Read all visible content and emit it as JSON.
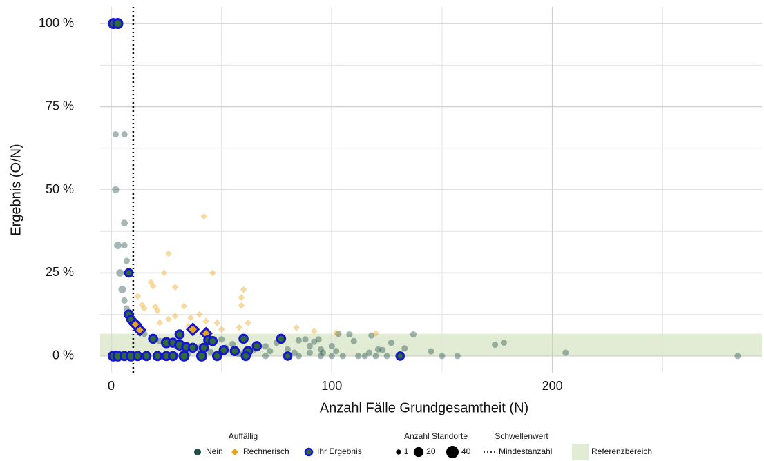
{
  "chart_data": {
    "type": "scatter",
    "xlabel": "Anzahl Fälle Grundgesamtheit (N)",
    "ylabel": "Ergebnis (O/N)",
    "xlim": [
      -5,
      295
    ],
    "ylim": [
      -5,
      105
    ],
    "xticks": [
      0,
      100,
      200
    ],
    "yticks": [
      {
        "value": 0,
        "label": "0 %"
      },
      {
        "value": 25,
        "label": "25 %"
      },
      {
        "value": 50,
        "label": "50 %"
      },
      {
        "value": 75,
        "label": "75 %"
      },
      {
        "value": 100,
        "label": "100 %"
      }
    ],
    "xminor": [
      50,
      150,
      250
    ],
    "yminor": [
      12.5,
      37.5,
      62.5,
      87.5
    ],
    "grid": true,
    "legend_title": "Auffällig",
    "reference": {
      "name": "Referenzbereich",
      "ylim": [
        0,
        6.7
      ],
      "color": "#e2ebd3"
    },
    "threshold": {
      "title": "Schwellenwert",
      "name": "Mindestanzahl",
      "x": 10
    },
    "size_legend": {
      "title": "Anzahl Standorte",
      "values": [
        1,
        20,
        40
      ]
    },
    "series": [
      {
        "name": "Nein",
        "color": "#1f4e48",
        "opacity": 0.4,
        "shape": "circle",
        "x": [
          2,
          6,
          2,
          6,
          3,
          6,
          4,
          5,
          6,
          7,
          7,
          10,
          15,
          20,
          22,
          30,
          40,
          50,
          55,
          70,
          75,
          85,
          88,
          90,
          92,
          94,
          95,
          100,
          103,
          105,
          108,
          110,
          112,
          115,
          118,
          120,
          121,
          125,
          127,
          133,
          137,
          145,
          150,
          157,
          174,
          178,
          206,
          284,
          70,
          85,
          95,
          100,
          60,
          65,
          72,
          80,
          45,
          35,
          52,
          58,
          83,
          90,
          96,
          102,
          117,
          123
        ],
        "values": [
          66.7,
          66.7,
          50,
          40,
          33.3,
          33.3,
          25,
          20,
          16.7,
          28.6,
          14.3,
          10,
          6.7,
          5,
          4.5,
          3.3,
          2.5,
          5,
          3.6,
          2.9,
          4,
          4.7,
          5,
          3,
          4.3,
          5,
          2,
          3,
          6.7,
          0,
          6.5,
          4.5,
          0,
          0,
          6.2,
          0,
          2,
          0,
          4,
          2.3,
          6.5,
          1.4,
          0,
          0,
          3.4,
          4,
          1,
          0,
          0,
          0,
          0,
          0,
          1,
          2,
          1.5,
          2,
          1.2,
          0.8,
          2.5,
          0.5,
          1,
          1,
          1,
          1.5,
          1,
          1.8
        ],
        "sizes": [
          2,
          2,
          4,
          3,
          5,
          2,
          5,
          5,
          2,
          2,
          2,
          2,
          2,
          2,
          2,
          2,
          2,
          2,
          2,
          2,
          2,
          2,
          2,
          2,
          2,
          2,
          2,
          2,
          2,
          2,
          2,
          2,
          2,
          2,
          2,
          2,
          2,
          2,
          2,
          2,
          2,
          2,
          2,
          2,
          2,
          2,
          2,
          2,
          2,
          2,
          2,
          2,
          2,
          2,
          2,
          2,
          2,
          2,
          2,
          2,
          2,
          2,
          2,
          2,
          2,
          2
        ]
      },
      {
        "name": "Rechnerisch",
        "color": "#e8a317",
        "opacity": 0.4,
        "shape": "diamond",
        "x": [
          42,
          26,
          18,
          19,
          24,
          29,
          46,
          60,
          59,
          59,
          33,
          12,
          14,
          15,
          20,
          21,
          29,
          26,
          36,
          40,
          43,
          48,
          22,
          58,
          62,
          84,
          92,
          102,
          120,
          50,
          35
        ],
        "values": [
          42,
          30.8,
          22.2,
          21,
          25,
          20.7,
          25,
          20,
          17.6,
          15.2,
          15,
          18,
          15.4,
          14.3,
          14.8,
          13.6,
          12,
          11.1,
          11.5,
          12.5,
          10.5,
          10,
          10,
          8.6,
          10,
          8.5,
          7.5,
          7,
          6.8,
          8,
          9
        ],
        "sizes": [
          1,
          1,
          1,
          1,
          1,
          1,
          1,
          1,
          1,
          1,
          1,
          1,
          1,
          1,
          1,
          1,
          1,
          1,
          1,
          1,
          1,
          1,
          1,
          1,
          1,
          1,
          1,
          1,
          1,
          1,
          1
        ]
      },
      {
        "name": "Ihr Ergebnis",
        "color": "#2e6a3a",
        "stroke": "#1616cc",
        "shape": "circle",
        "x": [
          1,
          3,
          8,
          8,
          9,
          11,
          13,
          19,
          25,
          28,
          31,
          31,
          34,
          37,
          37,
          43,
          44,
          46,
          42,
          51,
          56,
          60,
          62,
          66,
          77,
          80,
          131,
          1,
          3,
          6,
          9,
          12,
          16,
          21,
          25,
          28,
          33,
          41,
          48,
          61
        ],
        "values": [
          100,
          100,
          25,
          12.5,
          11,
          9.5,
          7.8,
          5.2,
          4,
          4,
          6.5,
          3.3,
          2.7,
          8,
          2.5,
          6.8,
          4.8,
          4.5,
          2.5,
          1.8,
          1.5,
          5.2,
          1.5,
          3,
          5.2,
          0,
          0,
          0,
          0,
          0,
          0,
          0,
          0,
          0,
          0,
          0,
          0,
          0,
          0,
          0
        ],
        "sizes": [
          20,
          20,
          12,
          15,
          12,
          12,
          12,
          15,
          20,
          15,
          15,
          20,
          15,
          15,
          15,
          12,
          15,
          15,
          15,
          15,
          15,
          15,
          15,
          15,
          15,
          12,
          12,
          20,
          20,
          15,
          20,
          15,
          15,
          15,
          15,
          15,
          20,
          20,
          15,
          15
        ],
        "markers": [
          "Nein",
          "Nein",
          "Nein",
          "Nein",
          "Nein",
          "Rechnerisch",
          "Rechnerisch",
          "Nein",
          "Nein",
          "Nein",
          "Nein",
          "Nein",
          "Nein",
          "Rechnerisch",
          "Nein",
          "Rechnerisch",
          "Nein",
          "Nein",
          "Nein",
          "Nein",
          "Nein",
          "Nein",
          "Nein",
          "Nein",
          "Nein",
          "Nein",
          "Nein",
          "Nein",
          "Nein",
          "Nein",
          "Nein",
          "Nein",
          "Nein",
          "Nein",
          "Nein",
          "Nein",
          "Nein",
          "Nein",
          "Nein",
          "Nein"
        ]
      }
    ]
  }
}
